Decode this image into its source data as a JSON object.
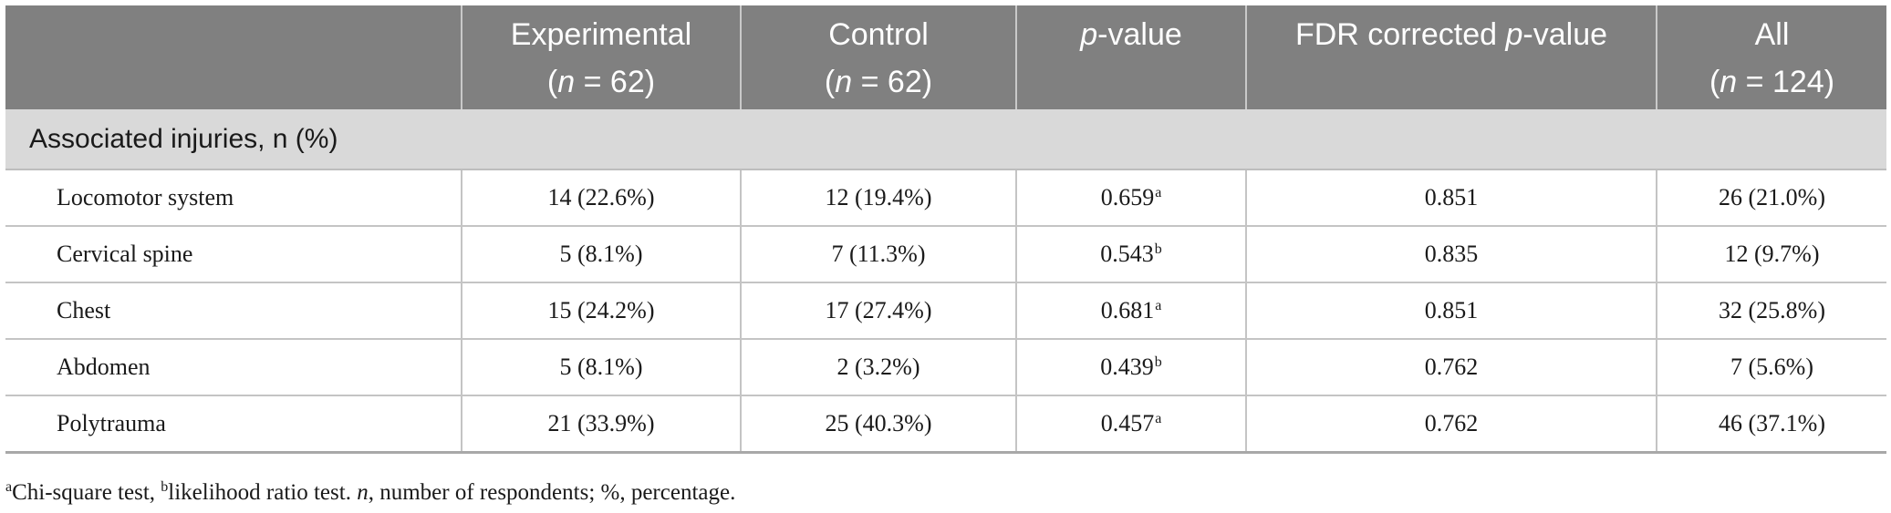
{
  "header": {
    "col0": "",
    "experimental": {
      "label": "Experimental",
      "n_prefix": "(",
      "n_var": "n",
      "n_suffix": " = 62)"
    },
    "control": {
      "label": "Control",
      "n_prefix": "(",
      "n_var": "n",
      "n_suffix": " = 62)"
    },
    "pvalue": {
      "var": "p",
      "rest": "-value"
    },
    "fdr": {
      "prefix": "FDR corrected ",
      "var": "p",
      "rest": "-value"
    },
    "all": {
      "label": "All",
      "n_prefix": "(",
      "n_var": "n",
      "n_suffix": " = 124)"
    }
  },
  "section_title": "Associated injuries, n (%)",
  "rows": [
    {
      "label": "Locomotor system",
      "experimental": "14 (22.6%)",
      "control": "12 (19.4%)",
      "p": "0.659",
      "p_mark": "a",
      "fdr": "0.851",
      "all": "26 (21.0%)"
    },
    {
      "label": "Cervical spine",
      "experimental": "5 (8.1%)",
      "control": "7 (11.3%)",
      "p": "0.543",
      "p_mark": "b",
      "fdr": "0.835",
      "all": "12 (9.7%)"
    },
    {
      "label": "Chest",
      "experimental": "15 (24.2%)",
      "control": "17 (27.4%)",
      "p": "0.681",
      "p_mark": "a",
      "fdr": "0.851",
      "all": "32 (25.8%)"
    },
    {
      "label": "Abdomen",
      "experimental": "5 (8.1%)",
      "control": "2 (3.2%)",
      "p": "0.439",
      "p_mark": "b",
      "fdr": "0.762",
      "all": "7 (5.6%)"
    },
    {
      "label": "Polytrauma",
      "experimental": "21 (33.9%)",
      "control": "25 (40.3%)",
      "p": "0.457",
      "p_mark": "a",
      "fdr": "0.762",
      "all": "46 (37.1%)"
    }
  ],
  "footnote": {
    "mark_a": "a",
    "text_a": "Chi-square test, ",
    "mark_b": "b",
    "text_b": "likelihood ratio test. ",
    "n_var": "n",
    "text_rest": ", number of respondents; %, percentage."
  },
  "colors": {
    "header_bg": "#808080",
    "section_bg": "#d9d9d9",
    "grid": "#c4c4c4"
  }
}
